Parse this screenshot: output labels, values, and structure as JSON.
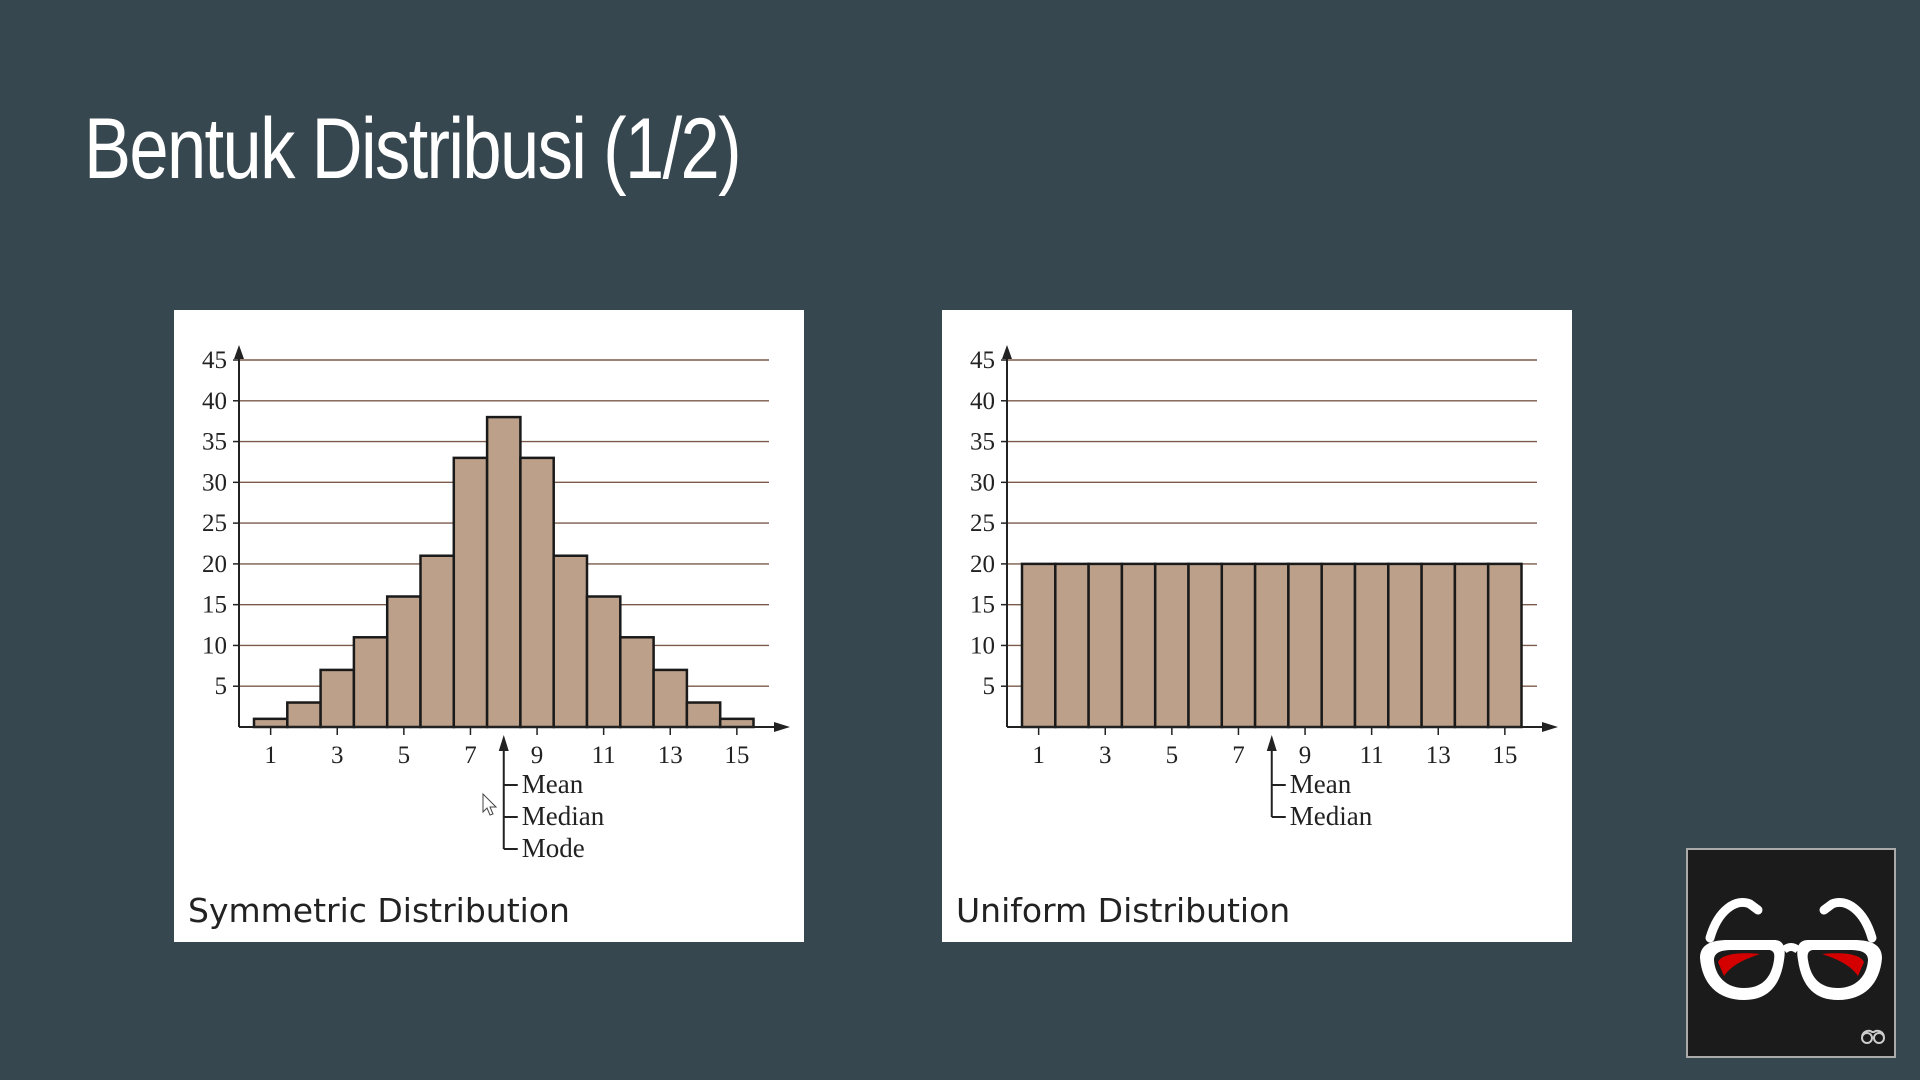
{
  "slide": {
    "title": "Bentuk Distribusi (1/2)",
    "background": "#37474f"
  },
  "colors": {
    "bar_fill": "#bca08a",
    "bar_stroke": "#1a1a1a",
    "grid": "#7a5a4a",
    "axis": "#222222"
  },
  "chart_data": [
    {
      "type": "bar",
      "title": "Symmetric Distribution",
      "xlabel": "",
      "ylabel": "",
      "x": [
        1,
        2,
        3,
        4,
        5,
        6,
        7,
        8,
        9,
        10,
        11,
        12,
        13,
        14,
        15
      ],
      "values": [
        1,
        3,
        7,
        11,
        16,
        21,
        33,
        38,
        33,
        21,
        16,
        11,
        7,
        3,
        1
      ],
      "ylim": [
        0,
        45
      ],
      "yticks": [
        5,
        10,
        15,
        20,
        25,
        30,
        35,
        40,
        45
      ],
      "xticks": [
        1,
        3,
        5,
        7,
        9,
        11,
        13,
        15
      ],
      "grid": true,
      "annotation": {
        "at": 8,
        "labels": [
          "Mean",
          "Median",
          "Mode"
        ]
      }
    },
    {
      "type": "bar",
      "title": "Uniform Distribution",
      "xlabel": "",
      "ylabel": "",
      "x": [
        1,
        2,
        3,
        4,
        5,
        6,
        7,
        8,
        9,
        10,
        11,
        12,
        13,
        14,
        15
      ],
      "values": [
        20,
        20,
        20,
        20,
        20,
        20,
        20,
        20,
        20,
        20,
        20,
        20,
        20,
        20,
        20
      ],
      "ylim": [
        0,
        45
      ],
      "yticks": [
        5,
        10,
        15,
        20,
        25,
        30,
        35,
        40,
        45
      ],
      "xticks": [
        1,
        3,
        5,
        7,
        9,
        11,
        13,
        15
      ],
      "grid": true,
      "annotation": {
        "at": 8,
        "labels": [
          "Mean",
          "Median"
        ]
      }
    }
  ],
  "overlay": {
    "icon": "glasses-icon"
  },
  "cursor": {
    "icon": "mouse-pointer-icon"
  }
}
